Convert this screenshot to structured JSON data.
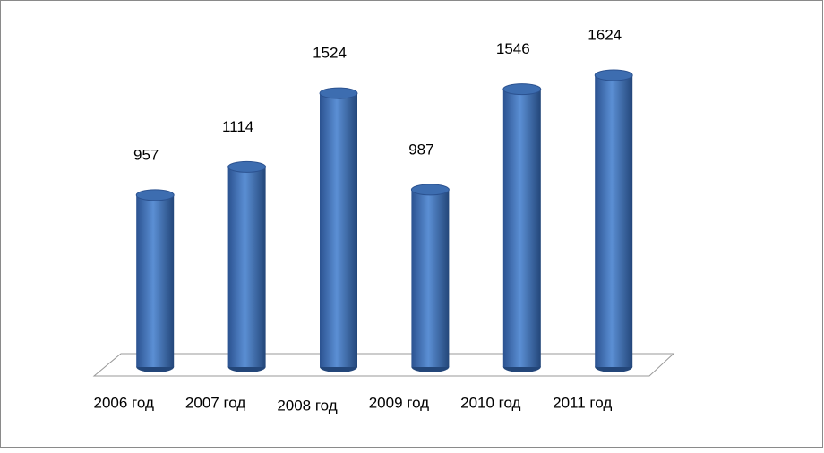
{
  "chart_data": {
    "type": "bar",
    "style": "3d-cylinder",
    "categories": [
      "2006 год",
      "2007 год",
      "2008 год",
      "2009 год",
      "2010 год",
      "2011 год"
    ],
    "values": [
      957,
      1114,
      1524,
      987,
      1546,
      1624
    ],
    "color": "#4a7ebf"
  }
}
